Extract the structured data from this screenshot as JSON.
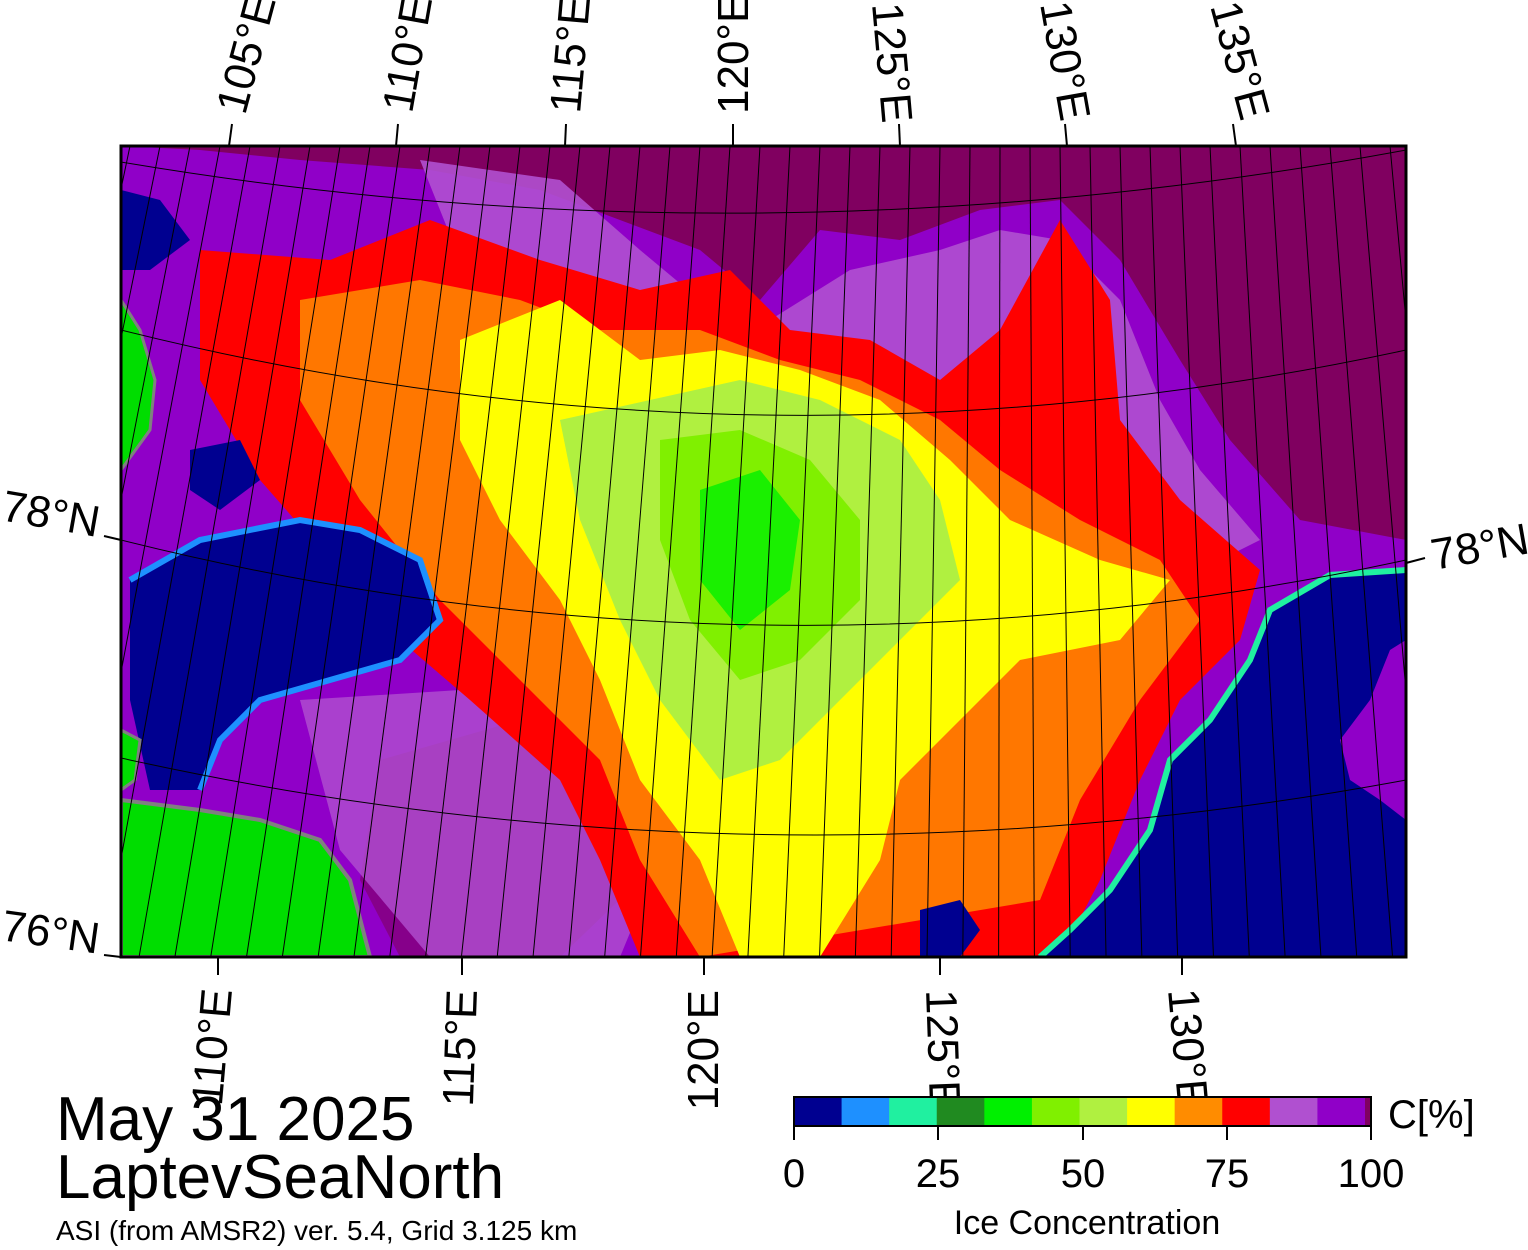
{
  "date": "May 31 2025",
  "region": "LaptevSeaNorth",
  "product": "ASI (from AMSR2) ver. 5.4,  Grid 3.125 km",
  "graticule": {
    "top_lon_labels": [
      "105°E",
      "110°E",
      "115°E",
      "120°E",
      "125°E",
      "130°E",
      "135°E"
    ],
    "bottom_lon_labels": [
      "110°E",
      "115°E",
      "120°E",
      "125°E",
      "130°E"
    ],
    "lat_labels": [
      "78°N",
      "76°N",
      "78°N"
    ]
  },
  "colorbar": {
    "unit": "C[%]",
    "title": "Ice Concentration",
    "ticks": [
      "0",
      "25",
      "50",
      "75",
      "100"
    ],
    "colors": [
      "#000090",
      "#1e90ff",
      "#20f0a0",
      "#208a20",
      "#00f000",
      "#80f000",
      "#b0f040",
      "#ffff00",
      "#ff8c00",
      "#ff0000",
      "#b050d0",
      "#9000c8",
      "#800060"
    ]
  },
  "map_colors": {
    "open_water": "#000090",
    "land": "#00dd00",
    "land_edge": "#808080",
    "high_ice": "#800060",
    "ice_purple": "#9000c8",
    "ice_lilac": "#b050d0"
  }
}
